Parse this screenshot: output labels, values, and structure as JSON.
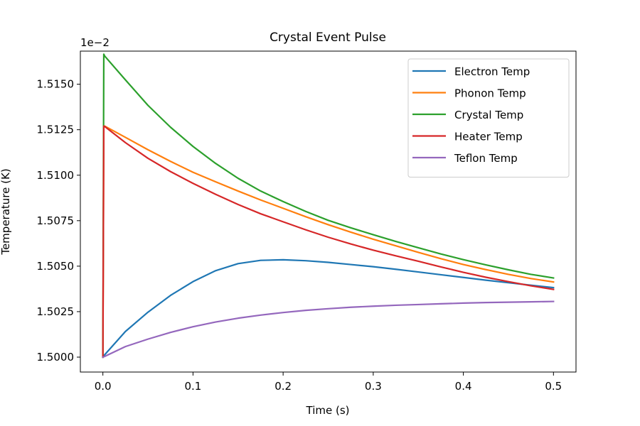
{
  "chart_data": {
    "type": "line",
    "title": "Crystal Event Pulse",
    "xlabel": "Time (s)",
    "ylabel": "Temperature (K)",
    "y_offset_text": "1e−2",
    "xlim": [
      -0.025,
      0.525
    ],
    "ylim": [
      1.49918,
      1.51682
    ],
    "x_ticks": [
      0.0,
      0.1,
      0.2,
      0.3,
      0.4,
      0.5
    ],
    "x_tick_labels": [
      "0.0",
      "0.1",
      "0.2",
      "0.3",
      "0.4",
      "0.5"
    ],
    "y_ticks": [
      1.5,
      1.5025,
      1.505,
      1.5075,
      1.51,
      1.5125,
      1.515
    ],
    "y_tick_labels": [
      "1.5000",
      "1.5025",
      "1.5050",
      "1.5075",
      "1.5100",
      "1.5125",
      "1.5150"
    ],
    "grid": false,
    "legend_position": "top-right",
    "x": [
      0,
      0.001,
      0.002,
      0.025,
      0.05,
      0.075,
      0.1,
      0.125,
      0.15,
      0.175,
      0.2,
      0.225,
      0.25,
      0.275,
      0.3,
      0.325,
      0.35,
      0.375,
      0.4,
      0.425,
      0.45,
      0.475,
      0.5
    ],
    "series": [
      {
        "name": "Electron Temp",
        "color": "#1f77b4",
        "values": [
          1.5,
          1.50007,
          1.50013,
          1.50141,
          1.50247,
          1.50339,
          1.50415,
          1.50475,
          1.50514,
          1.50532,
          1.50535,
          1.5053,
          1.50521,
          1.50509,
          1.50497,
          1.50483,
          1.50468,
          1.50453,
          1.50438,
          1.50423,
          1.50409,
          1.50395,
          1.50382
        ]
      },
      {
        "name": "Phonon Temp",
        "color": "#ff7f0e",
        "values": [
          1.5,
          1.5127,
          1.5127,
          1.51208,
          1.5114,
          1.51076,
          1.51016,
          1.50964,
          1.50913,
          1.50864,
          1.50818,
          1.50772,
          1.50728,
          1.50687,
          1.50648,
          1.50612,
          1.50576,
          1.50541,
          1.50509,
          1.50481,
          1.50455,
          1.50432,
          1.50413
        ]
      },
      {
        "name": "Crystal Temp",
        "color": "#2ca02c",
        "values": [
          1.5,
          1.51665,
          1.51655,
          1.51524,
          1.51384,
          1.51264,
          1.51158,
          1.51065,
          1.50983,
          1.50913,
          1.50855,
          1.50801,
          1.50752,
          1.50711,
          1.50673,
          1.50636,
          1.50601,
          1.50567,
          1.50536,
          1.50507,
          1.5048,
          1.50455,
          1.50435
        ]
      },
      {
        "name": "Heater Temp",
        "color": "#d62728",
        "values": [
          1.5,
          1.5127,
          1.51268,
          1.51179,
          1.51093,
          1.5102,
          1.50955,
          1.50895,
          1.50839,
          1.50788,
          1.50744,
          1.507,
          1.50659,
          1.50622,
          1.50588,
          1.50557,
          1.50527,
          1.50496,
          1.50466,
          1.50439,
          1.50415,
          1.50392,
          1.50372
        ]
      },
      {
        "name": "Teflon Temp",
        "color": "#9467bd",
        "values": [
          1.5,
          1.50002,
          1.50004,
          1.50058,
          1.50099,
          1.50136,
          1.50167,
          1.50193,
          1.50214,
          1.50231,
          1.50245,
          1.50257,
          1.50266,
          1.50274,
          1.5028,
          1.50285,
          1.50289,
          1.50293,
          1.50297,
          1.503,
          1.50302,
          1.50304,
          1.50306
        ]
      }
    ]
  }
}
